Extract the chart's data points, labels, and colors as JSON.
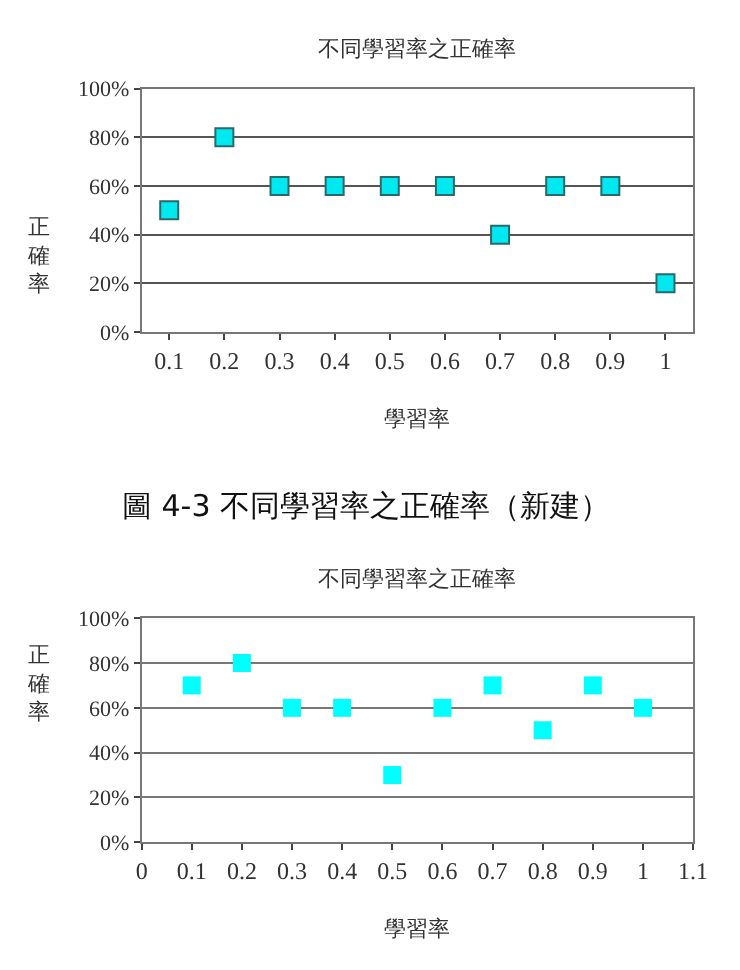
{
  "chart_data": [
    {
      "type": "scatter",
      "title": "不同學習率之正確率",
      "xlabel": "學習率",
      "ylabel": "正確率",
      "categories": [
        "0.1",
        "0.2",
        "0.3",
        "0.4",
        "0.5",
        "0.6",
        "0.7",
        "0.8",
        "0.9",
        "1"
      ],
      "series": [
        {
          "color": "#00e8f0",
          "values": [
            50,
            80,
            60,
            60,
            60,
            60,
            40,
            60,
            60,
            20
          ]
        }
      ],
      "ylim": [
        0,
        100
      ],
      "yticks": [
        {
          "value": 0,
          "label": "0%"
        },
        {
          "value": 20,
          "label": "20%"
        },
        {
          "value": 40,
          "label": "40%"
        },
        {
          "value": 60,
          "label": "60%"
        },
        {
          "value": 80,
          "label": "80%"
        },
        {
          "value": 100,
          "label": "100%"
        }
      ],
      "grid": "y",
      "marker": "square",
      "annotations": [
        "圖 4-3 不同學習率之正確率（新建）"
      ]
    },
    {
      "type": "scatter",
      "title": "不同學習率之正確率",
      "xlabel": "學習率",
      "ylabel": "正確率",
      "x": [
        0.1,
        0.2,
        0.3,
        0.4,
        0.5,
        0.6,
        0.7,
        0.8,
        0.9,
        1
      ],
      "series": [
        {
          "color": "#00ffff",
          "values": [
            70,
            80,
            60,
            60,
            30,
            60,
            70,
            50,
            70,
            60
          ]
        }
      ],
      "xlim": [
        0,
        1.1
      ],
      "xticks": [
        0,
        0.1,
        0.2,
        0.3,
        0.4,
        0.5,
        0.6,
        0.7,
        0.8,
        0.9,
        1,
        1.1
      ],
      "ylim": [
        0,
        100
      ],
      "yticks": [
        {
          "value": 0,
          "label": "0%"
        },
        {
          "value": 20,
          "label": "20%"
        },
        {
          "value": 40,
          "label": "40%"
        },
        {
          "value": 60,
          "label": "60%"
        },
        {
          "value": 80,
          "label": "80%"
        },
        {
          "value": 100,
          "label": "100%"
        }
      ],
      "grid": "y",
      "marker": "square"
    }
  ]
}
